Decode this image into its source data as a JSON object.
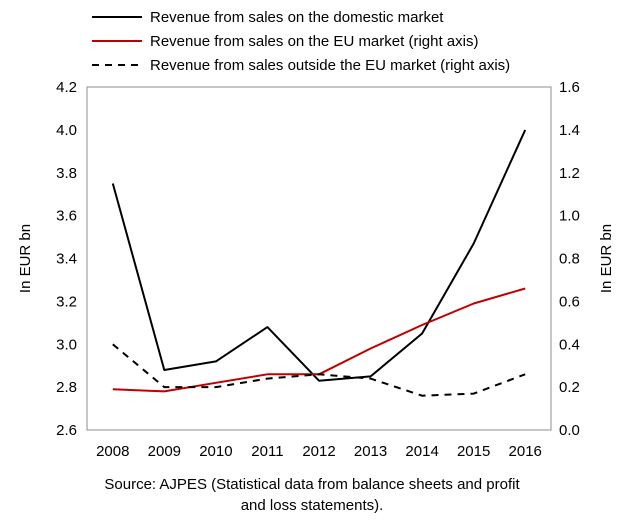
{
  "chart_data": {
    "type": "line",
    "categories": [
      "2008",
      "2009",
      "2010",
      "2011",
      "2012",
      "2013",
      "2014",
      "2015",
      "2016"
    ],
    "series": [
      {
        "name": "Revenue from sales on the domestic market",
        "axis": "left",
        "color": "#000000",
        "dash": "solid",
        "values": [
          3.75,
          2.88,
          2.92,
          3.08,
          2.83,
          2.85,
          3.05,
          3.47,
          4.0
        ]
      },
      {
        "name": "Revenue from sales on the EU market (right axis)",
        "axis": "right",
        "color": "#c00000",
        "dash": "solid",
        "values": [
          0.19,
          0.18,
          0.22,
          0.26,
          0.26,
          0.38,
          0.49,
          0.59,
          0.66
        ]
      },
      {
        "name": "Revenue from sales outside the EU market (right axis)",
        "axis": "right",
        "color": "#000000",
        "dash": "dashed",
        "values": [
          0.4,
          0.2,
          0.2,
          0.24,
          0.26,
          0.24,
          0.16,
          0.17,
          0.26
        ]
      }
    ],
    "y_left": {
      "label": "In EUR bn",
      "min": 2.6,
      "max": 4.2,
      "ticks": [
        "2.6",
        "2.8",
        "3.0",
        "3.2",
        "3.4",
        "3.6",
        "3.8",
        "4.0",
        "4.2"
      ]
    },
    "y_right": {
      "label": "In EUR bn",
      "min": 0.0,
      "max": 1.6,
      "ticks": [
        "0.0",
        "0.2",
        "0.4",
        "0.6",
        "0.8",
        "1.0",
        "1.2",
        "1.4",
        "1.6"
      ]
    },
    "legend_position": "top",
    "grid": false
  },
  "source": {
    "line1": "Source: AJPES (Statistical data from balance sheets and profit",
    "line2": "and loss statements)."
  }
}
